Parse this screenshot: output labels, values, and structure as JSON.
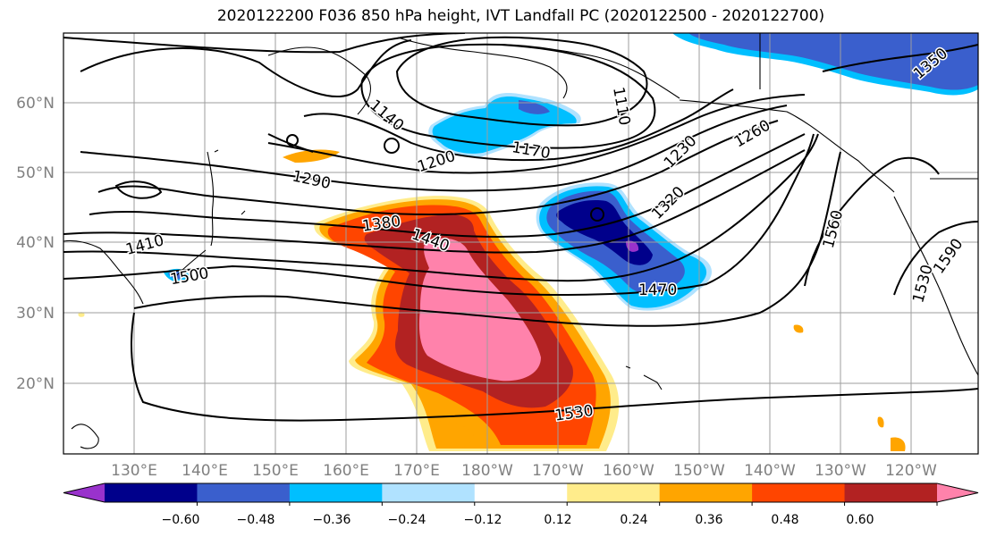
{
  "title": "2020122200 F036 850 hPa height, IVT Landfall PC (2020122500 - 2020122700)",
  "lon_labels": [
    "130°E",
    "140°E",
    "150°E",
    "160°E",
    "170°E",
    "180°W",
    "170°W",
    "160°W",
    "150°W",
    "140°W",
    "130°W",
    "120°W"
  ],
  "lat_labels": [
    "60°N",
    "50°N",
    "40°N",
    "30°N",
    "20°N"
  ],
  "contour_labels": [
    "1140",
    "1110",
    "1170",
    "1200",
    "1230",
    "1260",
    "1290",
    "1320",
    "1350",
    "1380",
    "1410",
    "1440",
    "1470",
    "1500",
    "1530",
    "1560",
    "1530",
    "1590"
  ],
  "colorbar": {
    "colors": [
      "#9932cc",
      "#00008b",
      "#3a5fcd",
      "#00bfff",
      "#b0e2ff",
      "#ffffff",
      "#ffec8b",
      "#ffa500",
      "#ff4500",
      "#b22222",
      "#ff82ab"
    ],
    "tick_labels": [
      "−0.60",
      "−0.48",
      "−0.36",
      "−0.24",
      "−0.12",
      "0.12",
      "0.24",
      "0.36",
      "0.48",
      "0.60"
    ]
  },
  "colors": {
    "positive_pink": "#ff82ab",
    "dark_red": "#b22222",
    "orange_red": "#ff4500",
    "orange": "#ffa500",
    "light_yellow": "#ffec8b",
    "light_blue": "#b0e2ff",
    "deep_sky_blue": "#00bfff",
    "royal_blue": "#3a5fcd",
    "navy": "#00008b"
  }
}
